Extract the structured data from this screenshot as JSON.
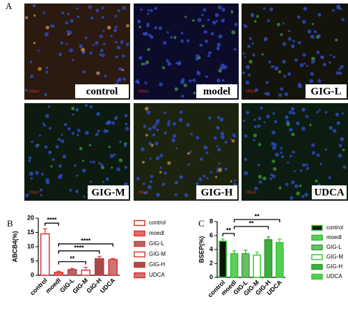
{
  "image_panels": {
    "label": "A",
    "panels": [
      {
        "label": "control",
        "scale": "100μm"
      },
      {
        "label": "model",
        "scale": "100μm"
      },
      {
        "label": "GIG-L",
        "scale": "100μm"
      },
      {
        "label": "GIG-M",
        "scale": "100μm"
      },
      {
        "label": "GIG-H",
        "scale": "100μm"
      },
      {
        "label": "UDCA",
        "scale": "100μm"
      }
    ]
  },
  "chart_data": [
    {
      "type": "bar",
      "panel_label": "B",
      "ylabel": "ABCB4(%)",
      "categories": [
        "control",
        "moedl",
        "GIG-L",
        "GIG-M",
        "GIG-H",
        "UDCA"
      ],
      "values": [
        14.5,
        1.0,
        2.0,
        1.8,
        5.8,
        5.5
      ],
      "errors": [
        1.8,
        0.4,
        0.4,
        1.0,
        0.8,
        0.4
      ],
      "colors": [
        "#ffffff",
        "#e86a6a",
        "#b86464",
        "#ffffff",
        "#a84a4a",
        "#cf7474"
      ],
      "edge_colors": [
        "#e03030",
        "#e03030",
        "#c04040",
        "#d83838",
        "#c03838",
        "#e03030"
      ],
      "ylim": [
        0,
        20
      ],
      "yticks": [
        0,
        5,
        10,
        15,
        20
      ],
      "annotations": [
        {
          "text": "**",
          "between": [
            "moedl",
            "GIG-M"
          ]
        },
        {
          "text": "****",
          "between": [
            "moedl",
            "GIG-H"
          ]
        },
        {
          "text": "****",
          "between": [
            "moedl",
            "UDCA"
          ]
        },
        {
          "text": "****",
          "between": [
            "control",
            "moedl"
          ]
        }
      ]
    },
    {
      "type": "bar",
      "panel_label": "C",
      "ylabel": "BSEP(%)",
      "categories": [
        "control",
        "moedl",
        "GIG-L",
        "GIG-M",
        "GIG-H",
        "UDCA"
      ],
      "values": [
        5.2,
        3.4,
        3.4,
        3.2,
        5.4,
        5.0
      ],
      "errors": [
        0.3,
        0.4,
        0.5,
        0.4,
        0.4,
        0.5
      ],
      "colors": [
        "#111111",
        "#5ccf5c",
        "#6cbc6c",
        "#ffffff",
        "#3fae3f",
        "#55cc55"
      ],
      "edge_colors": [
        "#33cc33",
        "#33bb33",
        "#33aa33",
        "#33cc33",
        "#2a9a2a",
        "#33cc33"
      ],
      "ylim": [
        0,
        8
      ],
      "yticks": [
        0,
        2,
        4,
        6,
        8
      ],
      "annotations": [
        {
          "text": "**",
          "between": [
            "control",
            "moedl"
          ]
        },
        {
          "text": "**",
          "between": [
            "moedl",
            "GIG-H"
          ]
        },
        {
          "text": "**",
          "between": [
            "moedl",
            "UDCA"
          ]
        }
      ]
    }
  ]
}
